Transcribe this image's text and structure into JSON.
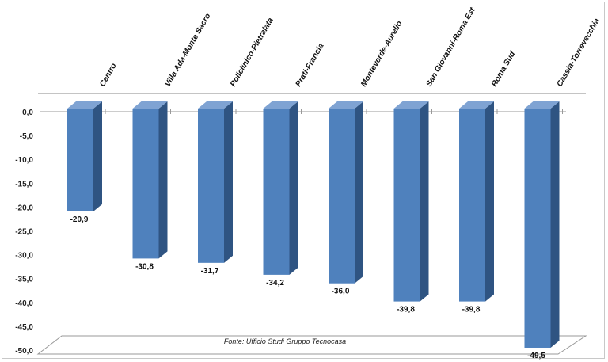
{
  "chart_data": {
    "type": "bar",
    "categories": [
      "Centro",
      "Villa Ada-Monte Sacro",
      "Policlinico-Pietralata",
      "Prati-Francia",
      "Monteverde-Aurelio",
      "San Giovanni-Roma Est",
      "Roma Sud",
      "Cassia-Torrevecchia"
    ],
    "values": [
      -20.9,
      -30.8,
      -31.7,
      -34.2,
      -36.0,
      -39.8,
      -39.8,
      -49.5
    ],
    "value_labels": [
      "-20,9",
      "-30,8",
      "-31,7",
      "-34,2",
      "-36,0",
      "-39,8",
      "-39,8",
      "-49,5"
    ],
    "y_ticks": [
      0,
      -5,
      -10,
      -15,
      -20,
      -25,
      -30,
      -35,
      -40,
      -45,
      -50
    ],
    "y_tick_labels": [
      "0,0",
      "-5,0",
      "-10,0",
      "-15,0",
      "-20,0",
      "-25,0",
      "-30,0",
      "-35,0",
      "-40,0",
      "-45,0",
      "-50,0"
    ],
    "ylim": [
      -50,
      0
    ],
    "source": "Fonte: Ufficio Studi Gruppo Tecnocasa",
    "title": "",
    "xlabel": "",
    "ylabel": "",
    "grid": false,
    "legend": "none",
    "style": "3d-column",
    "colors": {
      "bar_front": "#4f81bd",
      "bar_side": "#2f5482",
      "bar_top": "#7fa3d3"
    }
  }
}
